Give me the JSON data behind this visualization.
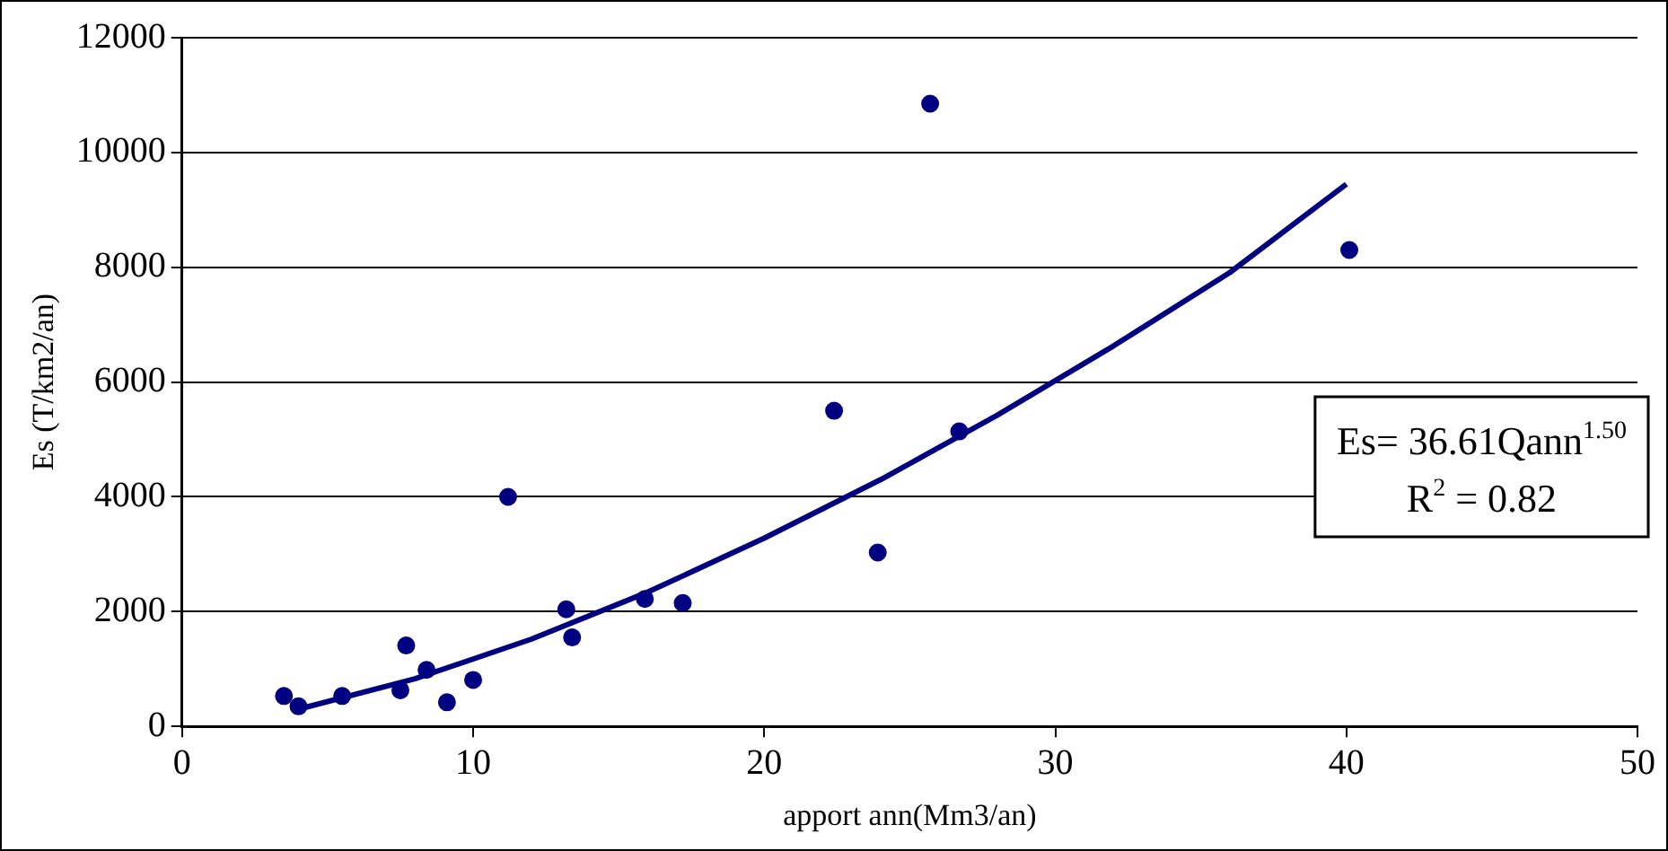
{
  "chart_data": {
    "type": "scatter",
    "xlabel": "apport ann(Mm3/an)",
    "ylabel": "Es (T/km2/an)",
    "xlim": [
      0,
      50
    ],
    "xticks": [
      0,
      10,
      20,
      30,
      40,
      50
    ],
    "ylim": [
      0,
      12000
    ],
    "yticks": [
      0,
      2000,
      4000,
      6000,
      8000,
      10000,
      12000
    ],
    "grid": "y",
    "legend": false,
    "marker": "circle",
    "annotations": [
      "Es= 36.61Qann$^{1.50}$",
      "R$^{2}$ = 0.82"
    ],
    "series": [
      {
        "color": "#000080",
        "x": [
          3.5,
          4.0,
          5.5,
          7.5,
          7.7,
          8.4,
          9.1,
          10.0,
          11.2,
          13.2,
          13.4,
          15.9,
          17.2,
          22.4,
          23.9,
          25.7,
          26.7,
          40.1
        ],
        "values": [
          530,
          350,
          530,
          630,
          1410,
          985,
          420,
          810,
          4000,
          2040,
          1550,
          2220,
          2150,
          5500,
          3030,
          10850,
          5140,
          8300
        ]
      },
      {
        "type": "line",
        "color": "#000080",
        "marker": "none",
        "x": [
          4,
          8,
          12,
          16,
          20,
          24,
          28,
          32,
          36,
          40
        ],
        "values": [
          300,
          830,
          1520,
          2340,
          3280,
          4300,
          5420,
          6630,
          7910,
          9450
        ]
      }
    ]
  }
}
